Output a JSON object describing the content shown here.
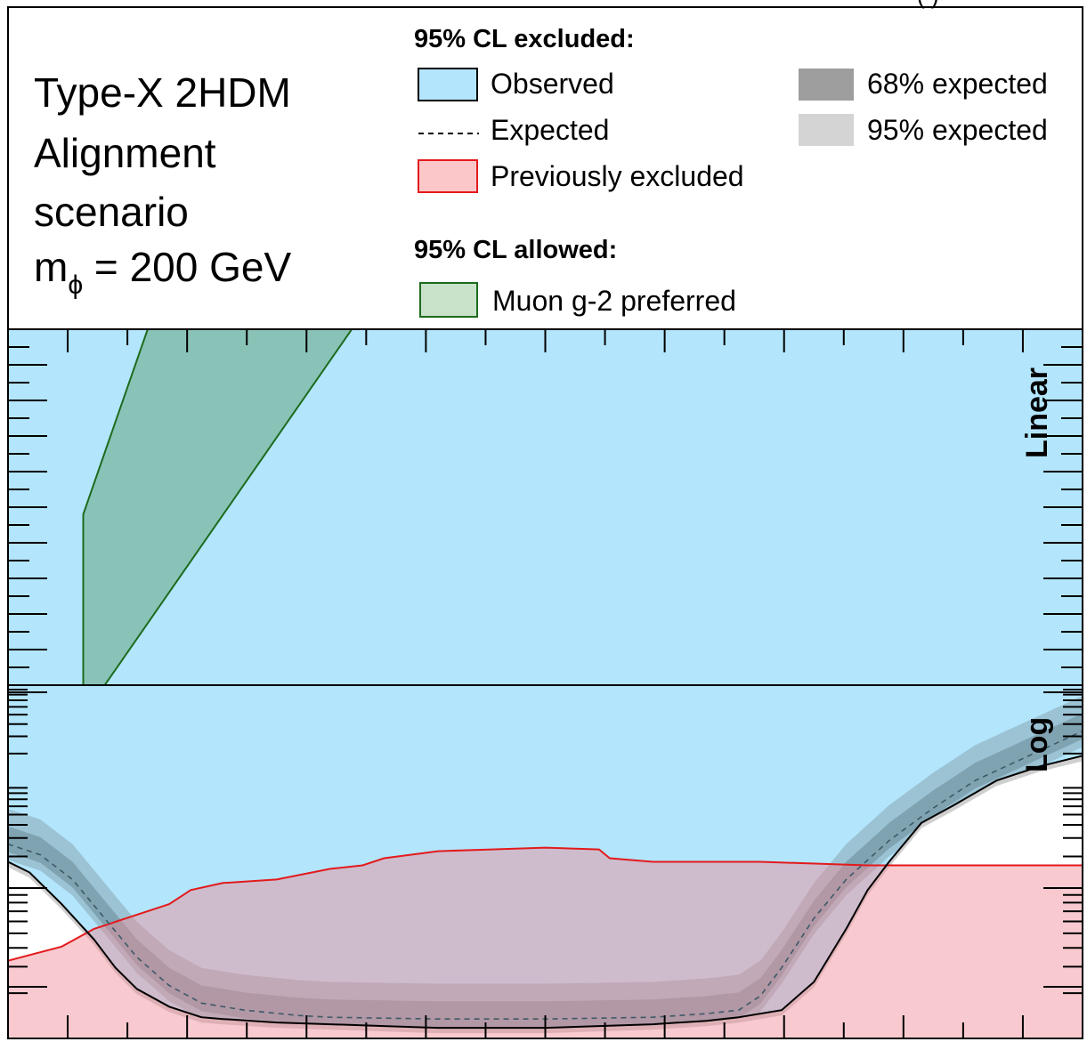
{
  "header": {
    "cut_label": "(          )",
    "scenario_lines": [
      "Type-X 2HDM",
      "Alignment",
      "scenario"
    ],
    "mass_prefix": "m",
    "mass_sub": "ϕ",
    "mass_suffix": " = 200 GeV"
  },
  "legend": {
    "excluded_title": "95% CL excluded:",
    "allowed_title": "95% CL allowed:",
    "observed": "Observed",
    "expected": "Expected",
    "previously_excluded": "Previously excluded",
    "band68": "68% expected",
    "band95": "95% expected",
    "muon": "Muon g-2 preferred"
  },
  "panels": {
    "linear": "Linear",
    "log": "Log"
  },
  "colors": {
    "observed_fill": "#b3e5fc",
    "band68": "#8f8f8f",
    "band95": "#c8c8c8",
    "previously_excluded_fill": "#fcc7c9",
    "previously_excluded_line": "#e31a1c",
    "muon_fill": "#8fcac8",
    "muon_line": "#1d6b1d"
  },
  "chart_data": {
    "type": "area",
    "title": "",
    "xlabel": "",
    "ylabel": "",
    "note": "Tick labels are not visible in the screenshot; coordinates below are normalized: x in [0,1] across the plot, y in [0,1] within the log panel (0=bottom).",
    "panels": [
      "Linear",
      "Log"
    ],
    "log_panel": {
      "observed": {
        "x": [
          0,
          0.02,
          0.05,
          0.08,
          0.1,
          0.12,
          0.15,
          0.18,
          0.2,
          0.25,
          0.3,
          0.35,
          0.4,
          0.45,
          0.5,
          0.55,
          0.6,
          0.65,
          0.68,
          0.72,
          0.75,
          0.78,
          0.8,
          0.82,
          0.85,
          0.88,
          0.92,
          0.96,
          1.0
        ],
        "y": [
          0.5,
          0.47,
          0.38,
          0.28,
          0.2,
          0.14,
          0.09,
          0.06,
          0.055,
          0.045,
          0.04,
          0.035,
          0.03,
          0.03,
          0.03,
          0.035,
          0.04,
          0.05,
          0.06,
          0.08,
          0.16,
          0.31,
          0.42,
          0.5,
          0.61,
          0.66,
          0.73,
          0.77,
          0.8
        ]
      },
      "expected": {
        "x": [
          0,
          0.03,
          0.06,
          0.09,
          0.12,
          0.15,
          0.18,
          0.22,
          0.27,
          0.3,
          0.4,
          0.5,
          0.6,
          0.65,
          0.68,
          0.7,
          0.72,
          0.75,
          0.78,
          0.82,
          0.86,
          0.9,
          0.95,
          1.0
        ],
        "y": [
          0.55,
          0.52,
          0.45,
          0.34,
          0.23,
          0.15,
          0.1,
          0.08,
          0.065,
          0.06,
          0.055,
          0.055,
          0.06,
          0.07,
          0.08,
          0.12,
          0.2,
          0.34,
          0.45,
          0.56,
          0.65,
          0.73,
          0.8,
          0.87
        ]
      },
      "band68_half_width": 0.05,
      "band95_half_width": 0.1,
      "previously_excluded": {
        "x": [
          0,
          0.05,
          0.08,
          0.15,
          0.17,
          0.2,
          0.25,
          0.3,
          0.33,
          0.35,
          0.4,
          0.45,
          0.5,
          0.55,
          0.56,
          0.6,
          0.7,
          0.8,
          0.9,
          1.0
        ],
        "y": [
          0.22,
          0.26,
          0.31,
          0.38,
          0.42,
          0.44,
          0.45,
          0.48,
          0.49,
          0.51,
          0.53,
          0.535,
          0.54,
          0.535,
          0.51,
          0.5,
          0.5,
          0.49,
          0.49,
          0.49
        ]
      }
    },
    "linear_panel": {
      "muon_g2_preferred": {
        "x_left": [
          0.07,
          0.07
        ],
        "y_left": [
          0.0,
          0.48
        ],
        "upper_edge_x": [
          0.07,
          0.13
        ],
        "upper_edge_y": [
          0.48,
          1.0
        ],
        "lower_edge_x": [
          0.09,
          0.32
        ],
        "lower_edge_y": [
          0.0,
          1.0
        ]
      }
    }
  }
}
